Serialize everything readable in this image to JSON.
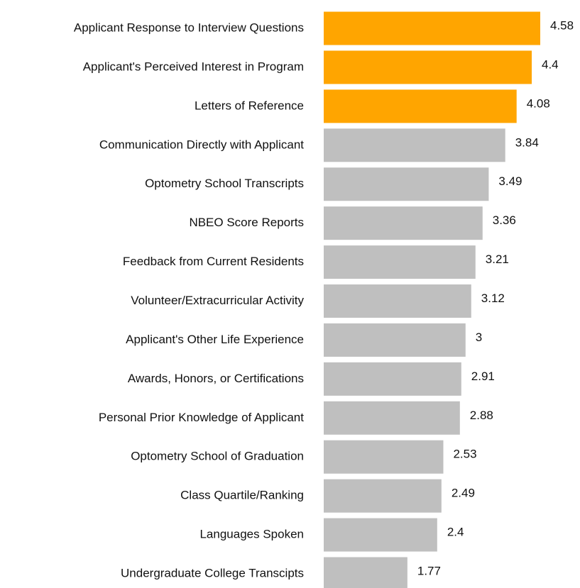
{
  "chart_data": {
    "type": "bar",
    "orientation": "horizontal",
    "categories": [
      "Applicant Response to Interview Questions",
      "Applicant's Perceived Interest in Program",
      "Letters of Reference",
      "Communication Directly with Applicant",
      "Optometry School Transcripts",
      "NBEO Score Reports",
      "Feedback from Current Residents",
      "Volunteer/Extracurricular Activity",
      "Applicant's Other Life Experience",
      "Awards, Honors, or Certifications",
      "Personal Prior Knowledge of Applicant",
      "Optometry School of Graduation",
      "Class Quartile/Ranking",
      "Languages Spoken",
      "Undergraduate College Transcipts"
    ],
    "values": [
      4.58,
      4.4,
      4.08,
      3.84,
      3.49,
      3.36,
      3.21,
      3.12,
      3,
      2.91,
      2.88,
      2.53,
      2.49,
      2.4,
      1.77
    ],
    "colors": [
      "#FFA500",
      "#FFA500",
      "#FFA500",
      "#BFBFBF",
      "#BFBFBF",
      "#BFBFBF",
      "#BFBFBF",
      "#BFBFBF",
      "#BFBFBF",
      "#BFBFBF",
      "#BFBFBF",
      "#BFBFBF",
      "#BFBFBF",
      "#BFBFBF",
      "#BFBFBF"
    ]
  }
}
